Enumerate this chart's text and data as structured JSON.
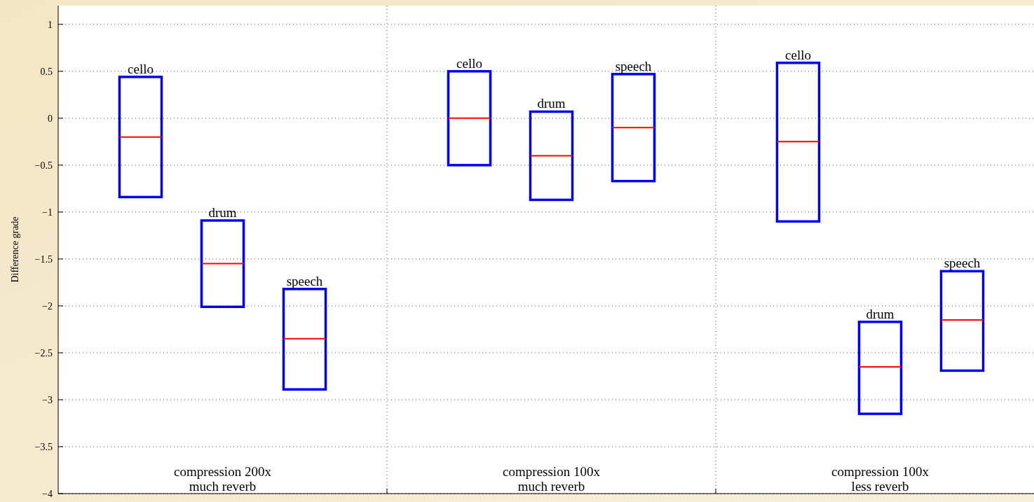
{
  "chart_data": {
    "type": "box",
    "ylabel": "Difference grade",
    "categories": [
      "compression 200x\nmuch reverb",
      "compression 100x\nmuch reverb",
      "compression 100x\nless reverb"
    ],
    "series": [
      {
        "name": "cello",
        "color": "#0000ff",
        "boxes": [
          {
            "low": -0.84,
            "q1": -0.84,
            "median": -0.2,
            "q3": 0.44,
            "high": 0.44
          },
          {
            "low": -0.5,
            "q1": -0.5,
            "median": 0,
            "q3": 0.5,
            "high": 0.5
          },
          {
            "low": -1.1,
            "q1": -1.1,
            "median": -0.25,
            "q3": 0.59,
            "high": 0.59
          }
        ]
      },
      {
        "name": "drum",
        "color": "#0000ff",
        "boxes": [
          {
            "low": -2.01,
            "q1": -2.01,
            "median": -1.55,
            "q3": -1.09,
            "high": -1.09
          },
          {
            "low": -0.87,
            "q1": -0.87,
            "median": -0.4,
            "q3": 0.07,
            "high": 0.07
          },
          {
            "low": -3.15,
            "q1": -3.15,
            "median": -2.65,
            "q3": -2.17,
            "high": -2.17
          }
        ]
      },
      {
        "name": "speech",
        "color": "#0000ff",
        "boxes": [
          {
            "low": -2.89,
            "q1": -2.89,
            "median": -2.35,
            "q3": -1.82,
            "high": -1.82
          },
          {
            "low": -0.67,
            "q1": -0.67,
            "median": -0.1,
            "q3": 0.47,
            "high": 0.47
          },
          {
            "low": -2.69,
            "q1": -2.69,
            "median": -2.15,
            "q3": -1.63,
            "high": -1.63
          }
        ]
      }
    ],
    "ylim": [
      -4,
      1.2
    ],
    "yticks": [
      -4,
      -3.5,
      -3,
      -2.5,
      -2,
      -1.5,
      -1,
      -0.5,
      0,
      0.5,
      1
    ],
    "grid": true,
    "legend": false
  }
}
